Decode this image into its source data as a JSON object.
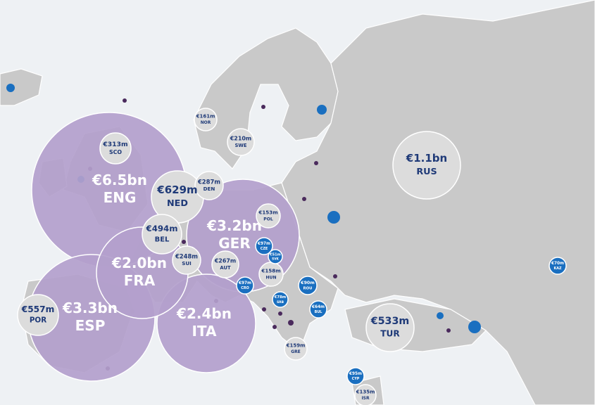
{
  "bubbles": [
    {
      "label": "€6.5bn",
      "code": "ENG"
    },
    {
      "label": "€3.3bn",
      "code": "ESP"
    },
    {
      "label": "€3.2bn",
      "code": "GER"
    },
    {
      "label": "€2.4bn",
      "code": "ITA"
    },
    {
      "label": "€2.0bn",
      "code": "FRA"
    },
    {
      "label": "€313m",
      "code": "SCO"
    },
    {
      "label": "€629m",
      "code": "NED"
    },
    {
      "label": "€287m",
      "code": "DEN"
    },
    {
      "label": "€494m",
      "code": "BEL"
    },
    {
      "label": "€248m",
      "code": "SUI"
    },
    {
      "label": "€267m",
      "code": "AUT"
    },
    {
      "label": "€153m",
      "code": "POL"
    },
    {
      "label": "€158m",
      "code": "HUN"
    },
    {
      "label": "€161m",
      "code": "NOR"
    },
    {
      "label": "€210m",
      "code": "SWE"
    },
    {
      "label": "€1.1bn",
      "code": "RUS"
    },
    {
      "label": "€557m",
      "code": "POR"
    },
    {
      "label": "€533m",
      "code": "TUR"
    },
    {
      "label": "€159m",
      "code": "GRE"
    },
    {
      "label": "€135m",
      "code": "ISR"
    },
    {
      "label": "€97m",
      "code": "CZE"
    },
    {
      "label": "€51m",
      "code": "SVK"
    },
    {
      "label": "€97m",
      "code": "CRO"
    },
    {
      "label": "€78m",
      "code": "SRB"
    },
    {
      "label": "€90m",
      "code": "ROU"
    },
    {
      "label": "€64m",
      "code": "BUL"
    },
    {
      "label": "€95m",
      "code": "CYP"
    },
    {
      "label": "€70m",
      "code": "KAZ"
    }
  ]
}
